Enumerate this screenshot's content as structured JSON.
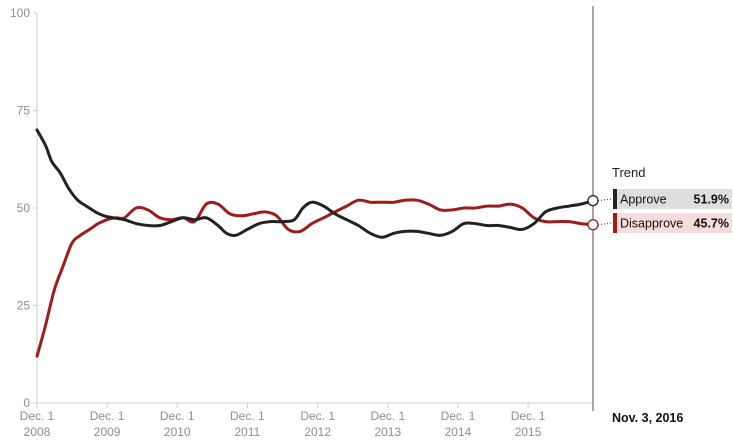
{
  "chart_data": {
    "type": "line",
    "ylim": [
      0,
      100
    ],
    "yticks": [
      "0",
      "25",
      "50",
      "75",
      "100"
    ],
    "xticks": [
      {
        "top": "Dec. 1",
        "bottom": "2008"
      },
      {
        "top": "Dec. 1",
        "bottom": "2009"
      },
      {
        "top": "Dec. 1",
        "bottom": "2010"
      },
      {
        "top": "Dec. 1",
        "bottom": "2011"
      },
      {
        "top": "Dec. 1",
        "bottom": "2012"
      },
      {
        "top": "Dec. 1",
        "bottom": "2013"
      },
      {
        "top": "Dec. 1",
        "bottom": "2014"
      },
      {
        "top": "Dec. 1",
        "bottom": "2015"
      }
    ],
    "x_start": "2008-12-01",
    "x_end": "2016-11-03",
    "end_date_label": "Nov. 3, 2016",
    "legend_title": "Trend",
    "grid": false,
    "series": [
      {
        "name": "Approve",
        "color": "#222222",
        "label_bg": "#dedede",
        "value_label": "51.9%",
        "points": [
          [
            "2008-12-01",
            70
          ],
          [
            "2009-01-15",
            66
          ],
          [
            "2009-02-15",
            62
          ],
          [
            "2009-04-01",
            59
          ],
          [
            "2009-05-15",
            55
          ],
          [
            "2009-07-01",
            52
          ],
          [
            "2009-08-15",
            50.5
          ],
          [
            "2009-10-01",
            49
          ],
          [
            "2009-11-15",
            48
          ],
          [
            "2010-01-01",
            47.5
          ],
          [
            "2010-03-01",
            47
          ],
          [
            "2010-05-01",
            46
          ],
          [
            "2010-07-01",
            45.5
          ],
          [
            "2010-09-01",
            45.5
          ],
          [
            "2010-11-01",
            46.5
          ],
          [
            "2011-01-01",
            47.5
          ],
          [
            "2011-03-01",
            47
          ],
          [
            "2011-05-01",
            47.5
          ],
          [
            "2011-07-01",
            45.5
          ],
          [
            "2011-08-15",
            43.5
          ],
          [
            "2011-10-01",
            43
          ],
          [
            "2011-12-01",
            44.5
          ],
          [
            "2012-02-01",
            46
          ],
          [
            "2012-04-01",
            46.5
          ],
          [
            "2012-06-01",
            46.5
          ],
          [
            "2012-08-01",
            47
          ],
          [
            "2012-09-15",
            50
          ],
          [
            "2012-11-01",
            51.5
          ],
          [
            "2013-01-01",
            50.5
          ],
          [
            "2013-03-01",
            48.5
          ],
          [
            "2013-05-01",
            47
          ],
          [
            "2013-07-01",
            45.5
          ],
          [
            "2013-09-01",
            43.5
          ],
          [
            "2013-11-01",
            42.5
          ],
          [
            "2014-01-01",
            43.5
          ],
          [
            "2014-03-01",
            44
          ],
          [
            "2014-05-01",
            44
          ],
          [
            "2014-07-01",
            43.5
          ],
          [
            "2014-09-01",
            43
          ],
          [
            "2014-11-01",
            44
          ],
          [
            "2015-01-01",
            46
          ],
          [
            "2015-03-01",
            46
          ],
          [
            "2015-05-01",
            45.5
          ],
          [
            "2015-07-01",
            45.5
          ],
          [
            "2015-09-01",
            45
          ],
          [
            "2015-11-01",
            44.5
          ],
          [
            "2016-01-01",
            46
          ],
          [
            "2016-03-01",
            49
          ],
          [
            "2016-05-01",
            50
          ],
          [
            "2016-07-01",
            50.5
          ],
          [
            "2016-09-01",
            51
          ],
          [
            "2016-11-03",
            51.9
          ]
        ]
      },
      {
        "name": "Disapprove",
        "color": "#a01c1c",
        "label_bg": "#f7dcdc",
        "value_label": "45.7%",
        "points": [
          [
            "2008-12-01",
            12
          ],
          [
            "2009-01-15",
            20
          ],
          [
            "2009-03-01",
            29
          ],
          [
            "2009-04-15",
            35
          ],
          [
            "2009-06-01",
            41
          ],
          [
            "2009-07-15",
            43
          ],
          [
            "2009-09-01",
            44.5
          ],
          [
            "2009-10-15",
            46
          ],
          [
            "2009-12-01",
            47
          ],
          [
            "2010-01-15",
            47.5
          ],
          [
            "2010-03-01",
            47.5
          ],
          [
            "2010-05-01",
            50
          ],
          [
            "2010-07-01",
            49.5
          ],
          [
            "2010-09-01",
            47.5
          ],
          [
            "2010-11-01",
            47
          ],
          [
            "2011-01-01",
            47.5
          ],
          [
            "2011-03-01",
            46.5
          ],
          [
            "2011-05-01",
            51
          ],
          [
            "2011-07-01",
            51
          ],
          [
            "2011-09-01",
            48.5
          ],
          [
            "2011-11-01",
            48
          ],
          [
            "2012-01-01",
            48.5
          ],
          [
            "2012-03-01",
            49
          ],
          [
            "2012-05-01",
            48
          ],
          [
            "2012-07-01",
            44.5
          ],
          [
            "2012-09-01",
            44
          ],
          [
            "2012-11-01",
            46
          ],
          [
            "2013-01-01",
            47.5
          ],
          [
            "2013-03-01",
            49
          ],
          [
            "2013-05-01",
            50.5
          ],
          [
            "2013-07-01",
            52
          ],
          [
            "2013-09-01",
            51.5
          ],
          [
            "2013-11-01",
            51.5
          ],
          [
            "2014-01-01",
            51.5
          ],
          [
            "2014-03-01",
            52
          ],
          [
            "2014-05-01",
            52
          ],
          [
            "2014-07-01",
            51
          ],
          [
            "2014-09-01",
            49.5
          ],
          [
            "2014-11-01",
            49.5
          ],
          [
            "2015-01-01",
            50
          ],
          [
            "2015-03-01",
            50
          ],
          [
            "2015-05-01",
            50.5
          ],
          [
            "2015-07-01",
            50.5
          ],
          [
            "2015-09-01",
            51
          ],
          [
            "2015-11-01",
            50
          ],
          [
            "2016-01-01",
            47.5
          ],
          [
            "2016-03-01",
            46.5
          ],
          [
            "2016-05-01",
            46.5
          ],
          [
            "2016-07-01",
            46.5
          ],
          [
            "2016-09-01",
            46
          ],
          [
            "2016-11-03",
            45.7
          ]
        ]
      }
    ]
  }
}
